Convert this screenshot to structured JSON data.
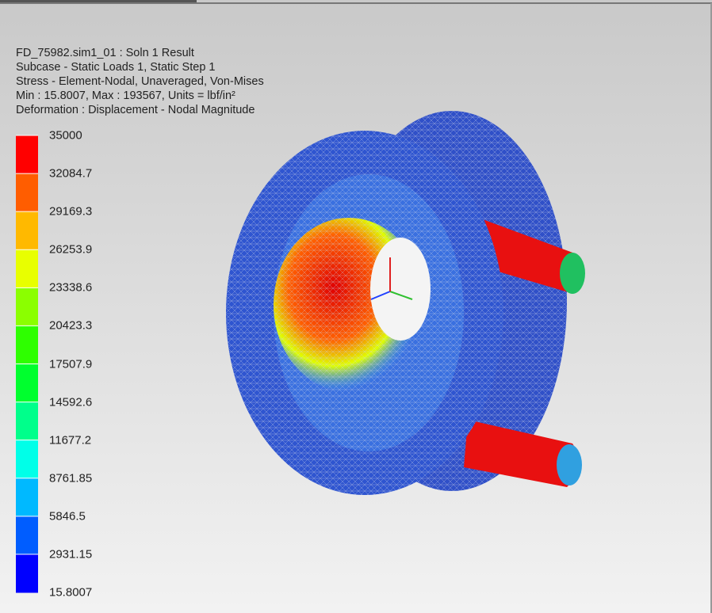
{
  "header": {
    "lines": [
      "FD_75982.sim1_01 : Soln 1 Result",
      "Subcase - Static Loads 1, Static Step 1",
      "Stress - Element-Nodal, Unaveraged, Von-Mises",
      "Min : 15.8007, Max : 193567, Units = lbf/in²",
      "Deformation : Displacement - Nodal Magnitude"
    ]
  },
  "legend": {
    "labels": [
      "35000",
      "32084.7",
      "29169.3",
      "26253.9",
      "23338.6",
      "20423.3",
      "17507.9",
      "14592.6",
      "11677.2",
      "8761.85",
      "5846.5",
      "2931.15",
      "15.8007"
    ]
  }
}
